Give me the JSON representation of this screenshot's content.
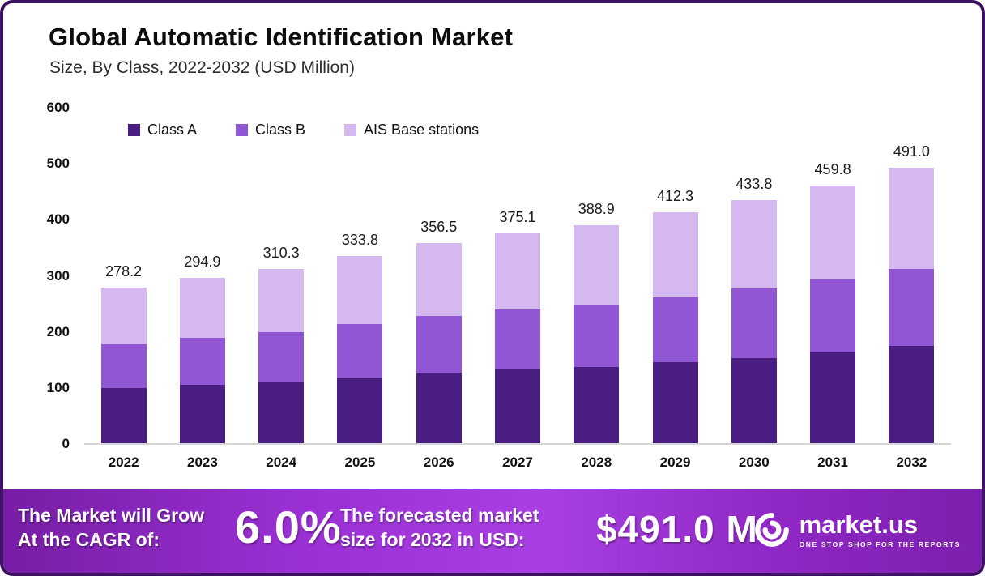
{
  "header": {
    "title": "Global Automatic Identification Market",
    "subtitle": "Size, By Class, 2022-2032 (USD Million)"
  },
  "chart_data": {
    "type": "bar",
    "stacked": true,
    "title": "Global Automatic Identification Market Size, By Class, 2022-2032 (USD Million)",
    "xlabel": "",
    "ylabel": "",
    "ylim": [
      0,
      600
    ],
    "yticks": [
      0,
      100,
      200,
      300,
      400,
      500,
      600
    ],
    "grid": false,
    "legend_position": "top",
    "categories": [
      "2022",
      "2023",
      "2024",
      "2025",
      "2026",
      "2027",
      "2028",
      "2029",
      "2030",
      "2031",
      "2032"
    ],
    "series": [
      {
        "name": "Class A",
        "color": "#4a1d82",
        "values": [
          98,
          104,
          109,
          117,
          126,
          132,
          136,
          145,
          152,
          162,
          173
        ]
      },
      {
        "name": "Class B",
        "color": "#9156d4",
        "values": [
          79,
          84,
          89,
          95,
          101,
          106,
          111,
          116,
          124,
          130,
          138
        ]
      },
      {
        "name": "AIS Base stations",
        "color": "#d5b8f0",
        "values": [
          101.2,
          106.9,
          112.3,
          121.8,
          129.5,
          137.1,
          141.9,
          151.3,
          157.8,
          167.8,
          180.0
        ]
      }
    ],
    "totals": [
      278.2,
      294.9,
      310.3,
      333.8,
      356.5,
      375.1,
      388.9,
      412.3,
      433.8,
      459.8,
      491.0
    ]
  },
  "banner": {
    "cagr_label_line1": "The Market will Grow",
    "cagr_label_line2": "At the CAGR of:",
    "cagr_value": "6.0%",
    "forecast_label_line1": "The forecasted market",
    "forecast_label_line2": "size for 2032 in USD:",
    "forecast_value": "$491.0 M",
    "brand_name": "market.us",
    "brand_tagline": "ONE STOP SHOP FOR THE REPORTS"
  },
  "colors": {
    "frame_border": "#3d1263",
    "banner_gradient_mid": "#a93fe2",
    "axis_line": "#d6d6d6"
  }
}
